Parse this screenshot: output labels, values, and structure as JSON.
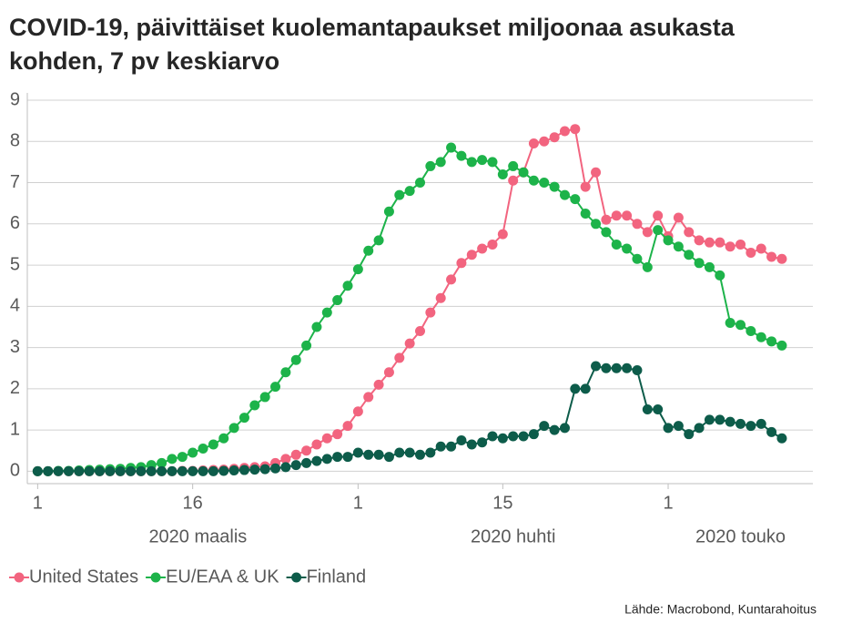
{
  "chart_data": {
    "type": "line",
    "title": "COVID-19, päivittäiset kuolemantapaukset miljoonaa asukasta kohden, 7 pv keskiarvo",
    "source": "Lähde: Macrobond, Kuntarahoitus",
    "x": [
      "2020-03-01",
      "2020-03-02",
      "2020-03-03",
      "2020-03-04",
      "2020-03-05",
      "2020-03-06",
      "2020-03-07",
      "2020-03-08",
      "2020-03-09",
      "2020-03-10",
      "2020-03-11",
      "2020-03-12",
      "2020-03-13",
      "2020-03-14",
      "2020-03-15",
      "2020-03-16",
      "2020-03-17",
      "2020-03-18",
      "2020-03-19",
      "2020-03-20",
      "2020-03-21",
      "2020-03-22",
      "2020-03-23",
      "2020-03-24",
      "2020-03-25",
      "2020-03-26",
      "2020-03-27",
      "2020-03-28",
      "2020-03-29",
      "2020-03-30",
      "2020-03-31",
      "2020-04-01",
      "2020-04-02",
      "2020-04-03",
      "2020-04-04",
      "2020-04-05",
      "2020-04-06",
      "2020-04-07",
      "2020-04-08",
      "2020-04-09",
      "2020-04-10",
      "2020-04-11",
      "2020-04-12",
      "2020-04-13",
      "2020-04-14",
      "2020-04-15",
      "2020-04-16",
      "2020-04-17",
      "2020-04-18",
      "2020-04-19",
      "2020-04-20",
      "2020-04-21",
      "2020-04-22",
      "2020-04-23",
      "2020-04-24",
      "2020-04-25",
      "2020-04-26",
      "2020-04-27",
      "2020-04-28",
      "2020-04-29",
      "2020-04-30",
      "2020-05-01",
      "2020-05-02",
      "2020-05-03",
      "2020-05-04",
      "2020-05-05",
      "2020-05-06",
      "2020-05-07",
      "2020-05-08",
      "2020-05-09",
      "2020-05-10",
      "2020-05-11",
      "2020-05-12"
    ],
    "series": [
      {
        "name": "United States",
        "color": "#f2647f",
        "values": [
          0,
          0,
          0,
          0,
          0,
          0,
          0,
          0,
          0,
          0,
          0,
          0,
          0,
          0,
          0.01,
          0.01,
          0.02,
          0.03,
          0.04,
          0.06,
          0.08,
          0.1,
          0.12,
          0.2,
          0.3,
          0.4,
          0.5,
          0.65,
          0.8,
          0.9,
          1.1,
          1.45,
          1.8,
          2.1,
          2.4,
          2.75,
          3.1,
          3.4,
          3.85,
          4.2,
          4.65,
          5.05,
          5.25,
          5.4,
          5.5,
          5.75,
          7.05,
          7.25,
          7.95,
          8.0,
          8.1,
          8.25,
          8.3,
          6.9,
          7.25,
          6.1,
          6.2,
          6.2,
          6.0,
          5.8,
          6.2,
          5.7,
          6.15,
          5.8,
          5.6,
          5.55,
          5.55,
          5.45,
          5.5,
          5.3,
          5.4,
          5.2,
          5.15
        ]
      },
      {
        "name": "EU/EAA & UK",
        "color": "#1db34a",
        "values": [
          0,
          0,
          0.01,
          0.01,
          0.02,
          0.03,
          0.04,
          0.05,
          0.06,
          0.08,
          0.1,
          0.15,
          0.2,
          0.3,
          0.35,
          0.45,
          0.55,
          0.65,
          0.8,
          1.05,
          1.3,
          1.6,
          1.8,
          2.05,
          2.4,
          2.7,
          3.05,
          3.5,
          3.85,
          4.15,
          4.5,
          4.9,
          5.35,
          5.6,
          6.3,
          6.7,
          6.8,
          7.0,
          7.4,
          7.5,
          7.85,
          7.65,
          7.5,
          7.55,
          7.5,
          7.2,
          7.4,
          7.25,
          7.05,
          7.0,
          6.9,
          6.7,
          6.6,
          6.25,
          6.0,
          5.8,
          5.5,
          5.4,
          5.15,
          4.95,
          5.85,
          5.6,
          5.45,
          5.25,
          5.05,
          4.95,
          4.75,
          3.6,
          3.55,
          3.4,
          3.25,
          3.15,
          3.05
        ]
      },
      {
        "name": "Finland",
        "color": "#0d5c4a",
        "values": [
          0,
          0,
          0,
          0,
          0,
          0,
          0,
          0,
          0,
          0,
          0,
          0,
          0,
          0,
          0,
          0,
          0,
          0,
          0.01,
          0.02,
          0.03,
          0.04,
          0.05,
          0.07,
          0.1,
          0.15,
          0.2,
          0.25,
          0.3,
          0.35,
          0.35,
          0.45,
          0.4,
          0.4,
          0.35,
          0.45,
          0.45,
          0.4,
          0.45,
          0.6,
          0.6,
          0.75,
          0.65,
          0.7,
          0.85,
          0.8,
          0.85,
          0.85,
          0.9,
          1.1,
          1.0,
          1.05,
          2.0,
          2.0,
          2.55,
          2.5,
          2.5,
          2.5,
          2.45,
          1.5,
          1.5,
          1.05,
          1.1,
          0.9,
          1.05,
          1.25,
          1.25,
          1.2,
          1.15,
          1.1,
          1.15,
          0.95,
          0.8
        ]
      }
    ],
    "xlim": [
      "2020-02-29",
      "2020-05-15"
    ],
    "xticks": [
      {
        "value": "2020-03-01",
        "label": "1"
      },
      {
        "value": "2020-03-16",
        "label": "16"
      },
      {
        "value": "2020-04-01",
        "label": "1"
      },
      {
        "value": "2020-04-15",
        "label": "15"
      },
      {
        "value": "2020-05-01",
        "label": "1"
      }
    ],
    "month_labels": [
      {
        "value": "2020-03",
        "label": "2020 maalis"
      },
      {
        "value": "2020-04",
        "label": "2020 huhti"
      },
      {
        "value": "2020-05",
        "label": "2020 touko"
      }
    ],
    "ylim": [
      -0.3,
      9
    ],
    "yticks": [
      0,
      1,
      2,
      3,
      4,
      5,
      6,
      7,
      8,
      9
    ],
    "grid": true,
    "legend": "bottom-left"
  }
}
